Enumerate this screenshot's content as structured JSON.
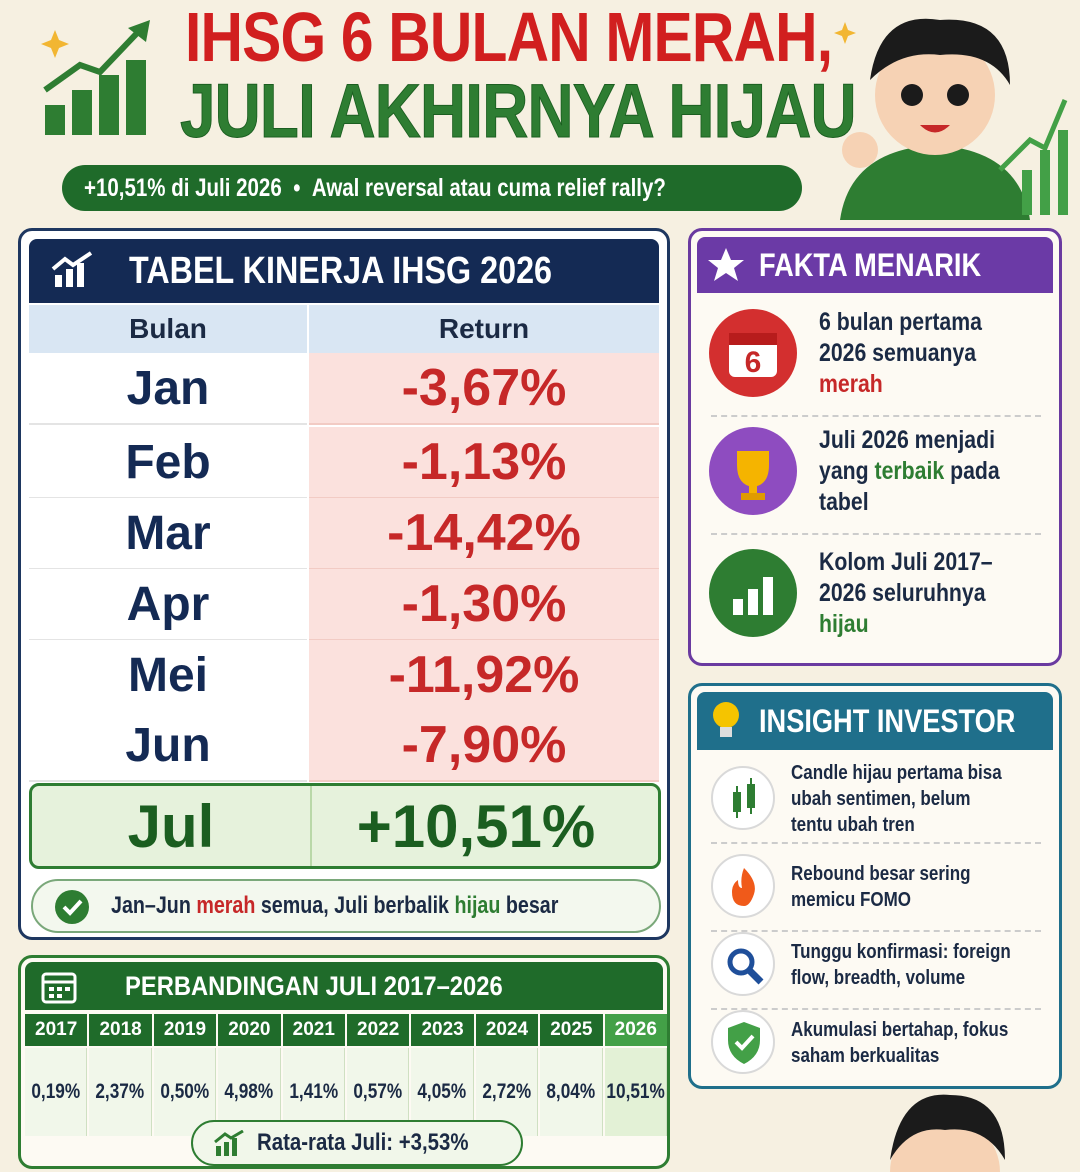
{
  "header": {
    "title_line1": "IHSG 6 BULAN MERAH,",
    "title_line2": "JULI AKHIRNYA HIJAU",
    "subtitle_left": "+10,51% di Juli 2026",
    "subtitle_sep": "•",
    "subtitle_right": "Awal reversal atau cuma relief rally?"
  },
  "table": {
    "title": "TABEL KINERJA IHSG 2026",
    "columns": [
      "Bulan",
      "Return"
    ],
    "rows": [
      [
        "Jan",
        "-3,67%"
      ],
      [
        "Feb",
        "-1,13%"
      ],
      [
        "Mar",
        "-14,42%"
      ],
      [
        "Apr",
        "-1,30%"
      ],
      [
        "Mei",
        "-11,92%"
      ],
      [
        "Jun",
        "-7,90%"
      ],
      [
        "Jul",
        "+10,51%"
      ]
    ],
    "note": [
      {
        "text": "Jan–Jun "
      },
      {
        "text": "merah",
        "color": "#c62828"
      },
      {
        "text": " semua, Juli berbalik "
      },
      {
        "text": "hijau",
        "color": "#2e7d32"
      },
      {
        "text": " besar"
      }
    ]
  },
  "facts": {
    "title": "FAKTA MENARIK",
    "calendar_number": "6",
    "items": [
      [
        {
          "text": "6 bulan pertama 2026 semuanya "
        },
        {
          "text": "merah",
          "color": "#c62828"
        }
      ],
      [
        {
          "text": "Juli 2026 menjadi yang "
        },
        {
          "text": "terbaik",
          "color": "#2e7d32"
        },
        {
          "text": " pada tabel"
        }
      ],
      [
        {
          "text": "Kolom Juli 2017–2026 seluruhnya "
        },
        {
          "text": "hijau",
          "color": "#2e7d32"
        }
      ]
    ]
  },
  "insight": {
    "title": "INSIGHT INVESTOR",
    "items": [
      "Candle hijau pertama bisa ubah sentimen, belum tentu ubah tren",
      "Rebound besar sering memicu FOMO",
      "Tunggu konfirmasi: foreign flow, breadth, volume",
      "Akumulasi bertahap, fokus saham berkualitas"
    ]
  },
  "comparison": {
    "title": "PERBANDINGAN JULI 2017–2026",
    "years": [
      "2017",
      "2018",
      "2019",
      "2020",
      "2021",
      "2022",
      "2023",
      "2024",
      "2025",
      "2026"
    ],
    "values": [
      "0,19%",
      "2,37%",
      "0,50%",
      "4,98%",
      "1,41%",
      "0,57%",
      "4,05%",
      "2,72%",
      "8,04%",
      "10,51%"
    ],
    "average": "Rata-rata Juli: +3,53%"
  }
}
